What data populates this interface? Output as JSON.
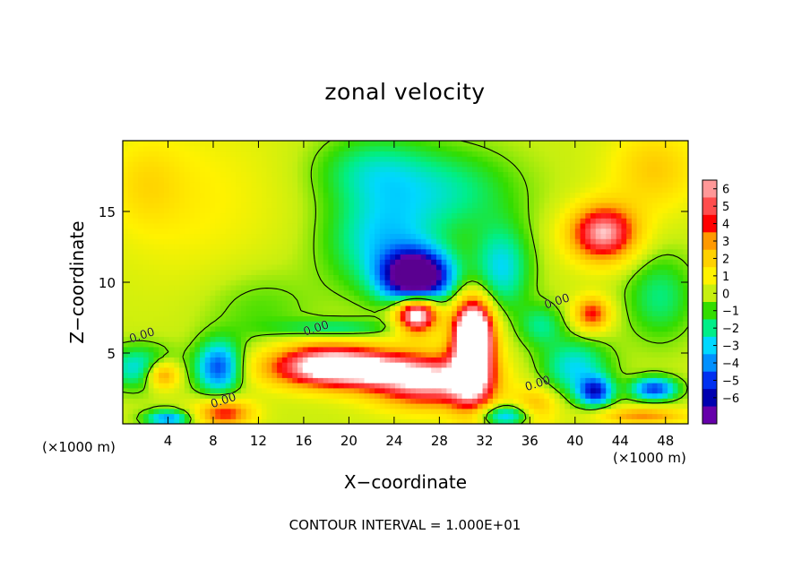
{
  "chart_data": {
    "type": "heatmap",
    "title": "zonal velocity",
    "xlabel": "X−coordinate",
    "ylabel": "Z−coordinate",
    "x_unit_label": "(×1000 m)",
    "xlim": [
      0,
      50
    ],
    "ylim": [
      0,
      20
    ],
    "x_ticks": [
      4,
      8,
      12,
      16,
      20,
      24,
      28,
      32,
      36,
      40,
      44,
      48
    ],
    "y_ticks": [
      5,
      10,
      15
    ],
    "colorbar": {
      "labels": [
        "6",
        "5",
        "4",
        "3",
        "2",
        "1",
        "0",
        "−1",
        "−2",
        "−3",
        "−4",
        "−5",
        "−6"
      ],
      "colors": [
        "#ff9898",
        "#ff4d4d",
        "#ff0000",
        "#ff9900",
        "#ffd100",
        "#fff200",
        "#c6ef10",
        "#33dd00",
        "#00ee88",
        "#00d8ff",
        "#0090ff",
        "#0030f0",
        "#0000b0",
        "#6600aa"
      ]
    },
    "contour_labels": [
      {
        "text": "0.00",
        "x": 1.8,
        "y": 6.0
      },
      {
        "text": "0.00",
        "x": 17.2,
        "y": 6.5
      },
      {
        "text": "0.00",
        "x": 9.0,
        "y": 1.4
      },
      {
        "text": "0.00",
        "x": 36.8,
        "y": 2.6
      },
      {
        "text": "0.00",
        "x": 38.5,
        "y": 8.4
      }
    ],
    "features": [
      {
        "x": 26.0,
        "y": 10.4,
        "sx": 3.0,
        "sy": 1.8,
        "a": -9
      },
      {
        "x": 23.0,
        "y": 13.0,
        "sx": 5.0,
        "sy": 3.5,
        "a": -3
      },
      {
        "x": 29.0,
        "y": 16.5,
        "sx": 6.0,
        "sy": 3.0,
        "a": -2
      },
      {
        "x": 22.0,
        "y": 18.0,
        "sx": 5.0,
        "sy": 2.5,
        "a": -2
      },
      {
        "x": 33.5,
        "y": 11.0,
        "sx": 2.5,
        "sy": 3.0,
        "a": -3
      },
      {
        "x": 26.0,
        "y": 7.8,
        "sx": 1.8,
        "sy": 1.3,
        "a": 8
      },
      {
        "x": 31.0,
        "y": 6.5,
        "sx": 1.6,
        "sy": 2.2,
        "a": 8
      },
      {
        "x": 19.0,
        "y": 4.0,
        "sx": 6.0,
        "sy": 1.4,
        "a": 8
      },
      {
        "x": 27.0,
        "y": 3.0,
        "sx": 5.0,
        "sy": 1.8,
        "a": 6
      },
      {
        "x": 31.0,
        "y": 4.0,
        "sx": 2.0,
        "sy": 4.0,
        "a": 5
      },
      {
        "x": 19.0,
        "y": 6.8,
        "sx": 5.0,
        "sy": 0.6,
        "a": -2
      },
      {
        "x": 17.0,
        "y": 5.2,
        "sx": 4.0,
        "sy": 1.0,
        "a": 1
      },
      {
        "x": 42.5,
        "y": 13.5,
        "sx": 3.0,
        "sy": 2.0,
        "a": 6
      },
      {
        "x": 41.5,
        "y": 7.8,
        "sx": 1.6,
        "sy": 1.2,
        "a": 4
      },
      {
        "x": 40.0,
        "y": 4.0,
        "sx": 3.0,
        "sy": 2.0,
        "a": -3
      },
      {
        "x": 37.0,
        "y": 7.0,
        "sx": 2.0,
        "sy": 1.5,
        "a": -2
      },
      {
        "x": 41.8,
        "y": 2.3,
        "sx": 1.5,
        "sy": 1.0,
        "a": -5
      },
      {
        "x": 47.0,
        "y": 2.5,
        "sx": 2.0,
        "sy": 0.8,
        "a": -5
      },
      {
        "x": 46.0,
        "y": 0.6,
        "sx": 4.0,
        "sy": 0.6,
        "a": 3
      },
      {
        "x": 36.5,
        "y": 1.0,
        "sx": 2.0,
        "sy": 1.5,
        "a": 3
      },
      {
        "x": 8.5,
        "y": 4.0,
        "sx": 2.0,
        "sy": 1.8,
        "a": -5
      },
      {
        "x": 9.0,
        "y": 0.8,
        "sx": 2.5,
        "sy": 1.0,
        "a": 4
      },
      {
        "x": 3.5,
        "y": 3.5,
        "sx": 1.5,
        "sy": 1.0,
        "a": 4
      },
      {
        "x": 1.5,
        "y": 4.0,
        "sx": 3.0,
        "sy": 1.5,
        "a": -3
      },
      {
        "x": 4.0,
        "y": 0.4,
        "sx": 2.0,
        "sy": 0.6,
        "a": -4
      },
      {
        "x": 34.0,
        "y": 0.6,
        "sx": 3.0,
        "sy": 0.8,
        "a": -4
      },
      {
        "x": 6.0,
        "y": 16.0,
        "sx": 8.0,
        "sy": 6.0,
        "a": 1
      },
      {
        "x": 47.0,
        "y": 18.0,
        "sx": 4.0,
        "sy": 3.0,
        "a": 2
      },
      {
        "x": 2.0,
        "y": 17.0,
        "sx": 3.0,
        "sy": 3.0,
        "a": 1
      },
      {
        "x": 47.5,
        "y": 9.0,
        "sx": 3.0,
        "sy": 3.0,
        "a": -2
      },
      {
        "x": 12.0,
        "y": 8.0,
        "sx": 5.0,
        "sy": 3.0,
        "a": -1
      }
    ]
  },
  "footer": {
    "text": "CONTOUR INTERVAL = 1.000E+01"
  }
}
